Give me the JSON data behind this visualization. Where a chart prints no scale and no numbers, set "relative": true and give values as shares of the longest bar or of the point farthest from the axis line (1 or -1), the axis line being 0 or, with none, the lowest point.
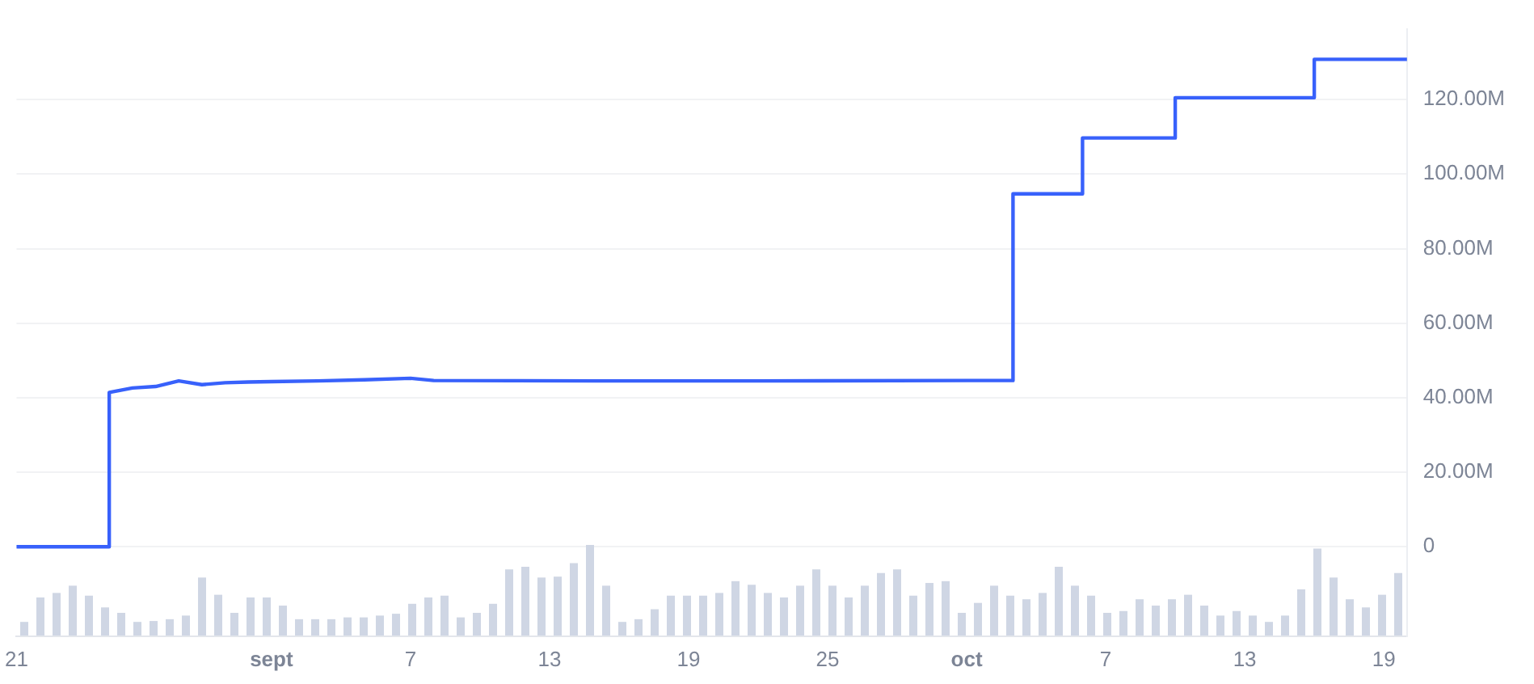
{
  "chart_data": [
    {
      "type": "line",
      "color": "#3861fb",
      "x": [
        "--08-21",
        "--08-25",
        "--08-25",
        "--08-26",
        "--08-27",
        "--08-28",
        "--08-29",
        "--08-30",
        "--08-31",
        "--09-01",
        "--09-03",
        "--09-05",
        "--09-07",
        "--09-08",
        "--09-15",
        "--09-22",
        "--10-01",
        "--10-03",
        "--10-03",
        "--10-06",
        "--10-06",
        "--10-10",
        "--10-10",
        "--10-16",
        "--10-16",
        "--10-20"
      ],
      "values": [
        0,
        0,
        41.4,
        42.6,
        43,
        44.5,
        43.5,
        44,
        44.2,
        44.3,
        44.5,
        44.8,
        45.2,
        44.6,
        44.5,
        44.5,
        44.6,
        44.6,
        94.7,
        94.7,
        109.7,
        109.7,
        120.5,
        120.5,
        130.8,
        130.8
      ],
      "xlim": [
        "--08-21",
        "--10-20"
      ],
      "xticks": [
        {
          "value": "--08-21",
          "label": "21"
        },
        {
          "value": "--09-01",
          "label": "sept"
        },
        {
          "value": "--09-07",
          "label": "7"
        },
        {
          "value": "--09-13",
          "label": "13"
        },
        {
          "value": "--09-19",
          "label": "19"
        },
        {
          "value": "--09-25",
          "label": "25"
        },
        {
          "value": "--10-01",
          "label": "oct"
        },
        {
          "value": "--10-07",
          "label": "7"
        },
        {
          "value": "--10-13",
          "label": "13"
        },
        {
          "value": "--10-19",
          "label": "19"
        }
      ],
      "ylim": [
        -24,
        139
      ],
      "yticks": [
        {
          "value": 0,
          "label": "0"
        },
        {
          "value": 20,
          "label": "20.00M"
        },
        {
          "value": 40,
          "label": "40.00M"
        },
        {
          "value": 60,
          "label": "60.00M"
        },
        {
          "value": 80,
          "label": "80.00M"
        },
        {
          "value": 100,
          "label": "100.00M"
        },
        {
          "value": 120,
          "label": "120.00M"
        }
      ],
      "grid": "y"
    },
    {
      "type": "bar",
      "relative": true,
      "color": "#cfd6e4",
      "categories": [
        null,
        null,
        null,
        null,
        null,
        null,
        null,
        null,
        null,
        null,
        null,
        null,
        null,
        null,
        null,
        null,
        null,
        null,
        null,
        null,
        null,
        null,
        null,
        null,
        null,
        null,
        null,
        null,
        null,
        null,
        null,
        null,
        null,
        null,
        null,
        null,
        null,
        null,
        null,
        null,
        null,
        null,
        null,
        null,
        null,
        null,
        null,
        null,
        null,
        null,
        null,
        null,
        null,
        null,
        null,
        null,
        null,
        null,
        null,
        null,
        null,
        null,
        null,
        null,
        null,
        null,
        null,
        null,
        null,
        null,
        null,
        null,
        null,
        null,
        null,
        null,
        null,
        null,
        null,
        null,
        null,
        null,
        null,
        null,
        null,
        null
      ],
      "values": [
        0.15,
        0.42,
        0.47,
        0.55,
        0.44,
        0.31,
        0.25,
        0.15,
        0.16,
        0.18,
        0.22,
        0.64,
        0.45,
        0.25,
        0.42,
        0.42,
        0.33,
        0.18,
        0.18,
        0.18,
        0.2,
        0.2,
        0.22,
        0.24,
        0.35,
        0.42,
        0.44,
        0.2,
        0.25,
        0.35,
        0.73,
        0.76,
        0.64,
        0.65,
        0.8,
        1,
        0.55,
        0.15,
        0.18,
        0.29,
        0.44,
        0.44,
        0.44,
        0.47,
        0.6,
        0.56,
        0.47,
        0.42,
        0.55,
        0.73,
        0.55,
        0.42,
        0.55,
        0.69,
        0.73,
        0.44,
        0.58,
        0.6,
        0.25,
        0.36,
        0.55,
        0.44,
        0.4,
        0.47,
        0.76,
        0.55,
        0.44,
        0.25,
        0.27,
        0.4,
        0.33,
        0.4,
        0.45,
        0.33,
        0.22,
        0.27,
        0.22,
        0.15,
        0.22,
        0.51,
        0.96,
        0.64,
        0.4,
        0.31,
        0.45,
        0.69
      ]
    }
  ]
}
